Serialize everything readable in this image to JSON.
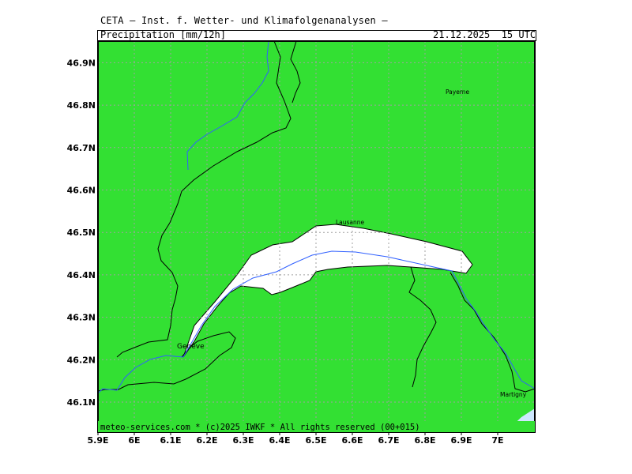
{
  "header": {
    "institute": "CETA — Inst. f. Wetter- und Klimafolgenanalysen —",
    "parameter": "Precipitation [mm/12h]",
    "valid_time": "21.12.2025  15 UTC"
  },
  "map": {
    "lon_range": [
      5.9,
      7.1
    ],
    "lat_range": [
      46.03,
      46.96
    ],
    "lon_ticks": [
      "5.9E",
      "6E",
      "6.1E",
      "6.2E",
      "6.3E",
      "6.4E",
      "6.5E",
      "6.6E",
      "6.7E",
      "6.8E",
      "6.9E",
      "7E"
    ],
    "lat_ticks": [
      "46.1N",
      "46.2N",
      "46.3N",
      "46.4N",
      "46.5N",
      "46.6N",
      "46.7N",
      "46.8N",
      "46.9N"
    ],
    "cities": [
      {
        "name": "Payerne"
      },
      {
        "name": "Lausanne"
      },
      {
        "name": "Genève"
      },
      {
        "name": "Martigny"
      }
    ],
    "colors": {
      "land_precip": "#33e033",
      "lake": "#ffffff",
      "river": "#3060ff",
      "border": "#000000",
      "grid": "#a0a0a0",
      "light_precip": "#cfe8ff"
    }
  },
  "footer": {
    "copyright": "meteo-services.com * (c)2025 IWKF * All rights reserved (00+015)"
  }
}
